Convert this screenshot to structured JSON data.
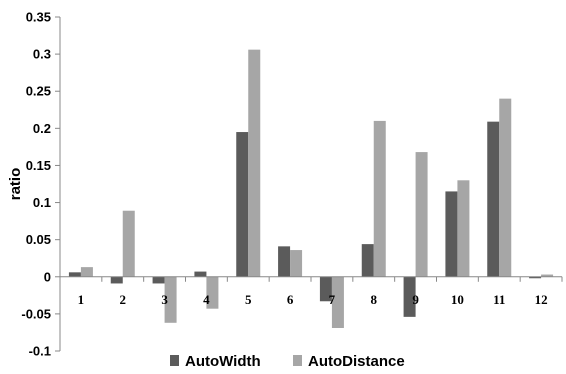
{
  "chart_data": {
    "type": "bar",
    "categories": [
      "1",
      "2",
      "3",
      "4",
      "5",
      "6",
      "7",
      "8",
      "9",
      "10",
      "11",
      "12"
    ],
    "series": [
      {
        "name": "AutoWidth",
        "color": "#5b5b5b",
        "values": [
          0.006,
          -0.009,
          -0.009,
          0.007,
          0.195,
          0.041,
          -0.033,
          0.044,
          -0.054,
          0.115,
          0.209,
          -0.002
        ]
      },
      {
        "name": "AutoDistance",
        "color": "#a6a6a6",
        "values": [
          0.013,
          0.089,
          -0.062,
          -0.043,
          0.306,
          0.036,
          -0.069,
          0.21,
          0.168,
          0.13,
          0.24,
          0.003
        ]
      }
    ],
    "title": "",
    "xlabel": "",
    "ylabel": "ratio",
    "ylim": [
      -0.1,
      0.35
    ],
    "yticks": [
      "-0.1",
      "-0.05",
      "0",
      "0.05",
      "0.1",
      "0.15",
      "0.2",
      "0.25",
      "0.3",
      "0.35"
    ],
    "grid": false,
    "legend_position": "bottom"
  }
}
